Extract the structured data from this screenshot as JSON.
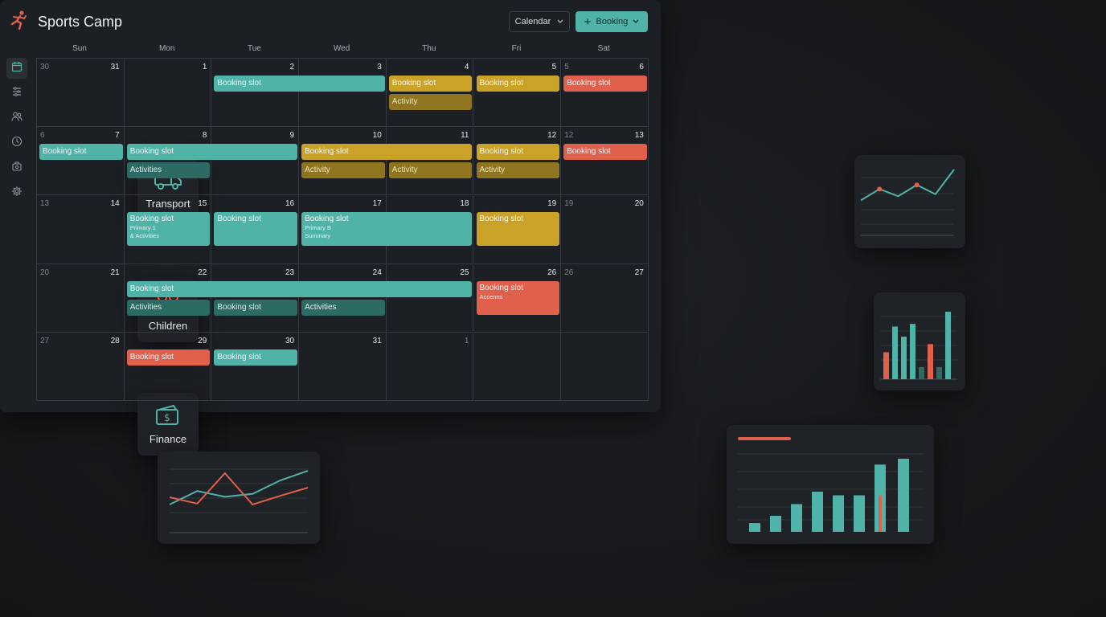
{
  "app": {
    "title": "Sports Camp"
  },
  "toolbar": {
    "view_label": "Calendar",
    "add_label": "Booking"
  },
  "features": [
    {
      "label": "Transport",
      "icon": "truck-icon"
    },
    {
      "label": "Children",
      "icon": "people-icon"
    },
    {
      "label": "Finance",
      "icon": "money-icon"
    }
  ],
  "sidebar": {
    "icons": [
      "calendar-icon",
      "filter-icon",
      "users-icon",
      "clock-icon",
      "briefcase-icon",
      "gear-icon"
    ]
  },
  "weekdays": [
    "Sun",
    "Mon",
    "Tue",
    "Wed",
    "Thu",
    "Fri",
    "Sat"
  ],
  "weeks": [
    [
      {
        "l": "30",
        "r": "31"
      },
      {
        "r": "1"
      },
      {
        "r": "2"
      },
      {
        "r": "3"
      },
      {
        "r": "4"
      },
      {
        "r": "5"
      },
      {
        "l": "5",
        "r": "6"
      }
    ],
    [
      {
        "l": "6",
        "r": "7"
      },
      {
        "r": "8"
      },
      {
        "r": "9"
      },
      {
        "r": "10"
      },
      {
        "r": "11"
      },
      {
        "r": "12"
      },
      {
        "l": "12",
        "r": "13"
      }
    ],
    [
      {
        "l": "13",
        "r": "14"
      },
      {
        "r": "15"
      },
      {
        "r": "16"
      },
      {
        "r": "17"
      },
      {
        "r": "18"
      },
      {
        "r": "19"
      },
      {
        "l": "19",
        "r": "20"
      }
    ],
    [
      {
        "l": "20",
        "r": "21"
      },
      {
        "r": "22"
      },
      {
        "r": "23"
      },
      {
        "r": "24"
      },
      {
        "r": "25"
      },
      {
        "r": "26"
      },
      {
        "l": "26",
        "r": "27"
      }
    ],
    [
      {
        "l": "27",
        "r": "28"
      },
      {
        "r": "29"
      },
      {
        "r": "30"
      },
      {
        "r": "31"
      },
      {
        "r": "1"
      },
      {
        "r": ""
      },
      {
        "r": ""
      }
    ]
  ],
  "events": [
    {
      "label": "Booking slot",
      "color": "teal",
      "week": 0,
      "col": 2,
      "span": 2,
      "row": 0
    },
    {
      "label": "Booking slot",
      "color": "gold",
      "week": 0,
      "col": 4,
      "span": 1,
      "row": 0
    },
    {
      "label": "Activity",
      "color": "dgold",
      "week": 0,
      "col": 4,
      "span": 1,
      "row": 1
    },
    {
      "label": "Booking slot",
      "color": "gold",
      "week": 0,
      "col": 5,
      "span": 1,
      "row": 0
    },
    {
      "label": "Booking slot",
      "color": "red",
      "week": 0,
      "col": 6,
      "span": 1,
      "row": 0
    },
    {
      "label": "Booking slot",
      "color": "teal",
      "week": 1,
      "col": 0,
      "span": 1,
      "row": 0
    },
    {
      "label": "Booking slot",
      "color": "teal",
      "week": 1,
      "col": 1,
      "span": 2,
      "row": 0
    },
    {
      "label": "Activities",
      "color": "dteal",
      "week": 1,
      "col": 1,
      "span": 1,
      "row": 1
    },
    {
      "label": "Booking slot",
      "color": "gold",
      "week": 1,
      "col": 3,
      "span": 2,
      "row": 0
    },
    {
      "label": "Activity",
      "color": "dgold",
      "week": 1,
      "col": 3,
      "span": 1,
      "row": 1
    },
    {
      "label": "Activity",
      "color": "dgold",
      "week": 1,
      "col": 4,
      "span": 1,
      "row": 1
    },
    {
      "label": "Booking slot",
      "color": "gold",
      "week": 1,
      "col": 5,
      "span": 1,
      "row": 0
    },
    {
      "label": "Activity",
      "color": "dgold",
      "week": 1,
      "col": 5,
      "span": 1,
      "row": 1
    },
    {
      "label": "Booking slot",
      "color": "red",
      "week": 1,
      "col": 6,
      "span": 1,
      "row": 0
    },
    {
      "label": "Booking slot",
      "sub1": "Primary 1",
      "sub2": "& Activities",
      "color": "teal",
      "week": 2,
      "col": 1,
      "span": 1,
      "row": 0,
      "tall": true
    },
    {
      "label": "Booking slot",
      "color": "teal",
      "week": 2,
      "col": 2,
      "span": 1,
      "row": 0,
      "tall": true
    },
    {
      "label": "Booking slot",
      "sub1": "Primary B",
      "sub2": "Summary",
      "color": "teal",
      "week": 2,
      "col": 3,
      "span": 2,
      "row": 0,
      "tall": true
    },
    {
      "label": "Booking slot",
      "color": "gold",
      "week": 2,
      "col": 5,
      "span": 1,
      "row": 0,
      "tall": true
    },
    {
      "label": "Booking slot",
      "color": "teal",
      "week": 3,
      "col": 1,
      "span": 4,
      "row": 0
    },
    {
      "label": "Activities",
      "color": "dteal",
      "week": 3,
      "col": 1,
      "span": 1,
      "row": 1
    },
    {
      "label": "Booking slot",
      "color": "dteal",
      "week": 3,
      "col": 2,
      "span": 1,
      "row": 1
    },
    {
      "label": "Activities",
      "color": "dteal",
      "week": 3,
      "col": 3,
      "span": 1,
      "row": 1
    },
    {
      "label": "Booking slot",
      "sub1": "Accenns",
      "color": "red",
      "week": 3,
      "col": 5,
      "span": 1,
      "row": 0,
      "tall": true
    },
    {
      "label": "Booking slot",
      "color": "red",
      "week": 4,
      "col": 1,
      "span": 1,
      "row": 0
    },
    {
      "label": "Booking slot",
      "color": "teal",
      "week": 4,
      "col": 2,
      "span": 1,
      "row": 0
    }
  ],
  "colors": {
    "teal": "#4fb3a7",
    "red": "#e0604c",
    "gold": "#c9a227"
  },
  "charts": {
    "top_right_line": {
      "teal": [
        40,
        62,
        48,
        70,
        52,
        100
      ],
      "red_points": [
        1,
        3
      ]
    },
    "mid_right_bars": {
      "teal": [
        58,
        78,
        63,
        82,
        18,
        58,
        18,
        100
      ],
      "red": [
        40,
        0,
        0,
        0,
        0,
        52,
        0,
        0
      ]
    },
    "bottom_left_lines": {
      "teal": [
        20,
        48,
        36,
        42,
        70,
        90
      ],
      "red": [
        35,
        22,
        85,
        20,
        38,
        55
      ]
    },
    "bottom_right_bars": {
      "teal": [
        12,
        22,
        38,
        55,
        50,
        50,
        92,
        100
      ],
      "red": [
        0,
        0,
        0,
        0,
        0,
        0,
        50,
        0
      ]
    }
  }
}
